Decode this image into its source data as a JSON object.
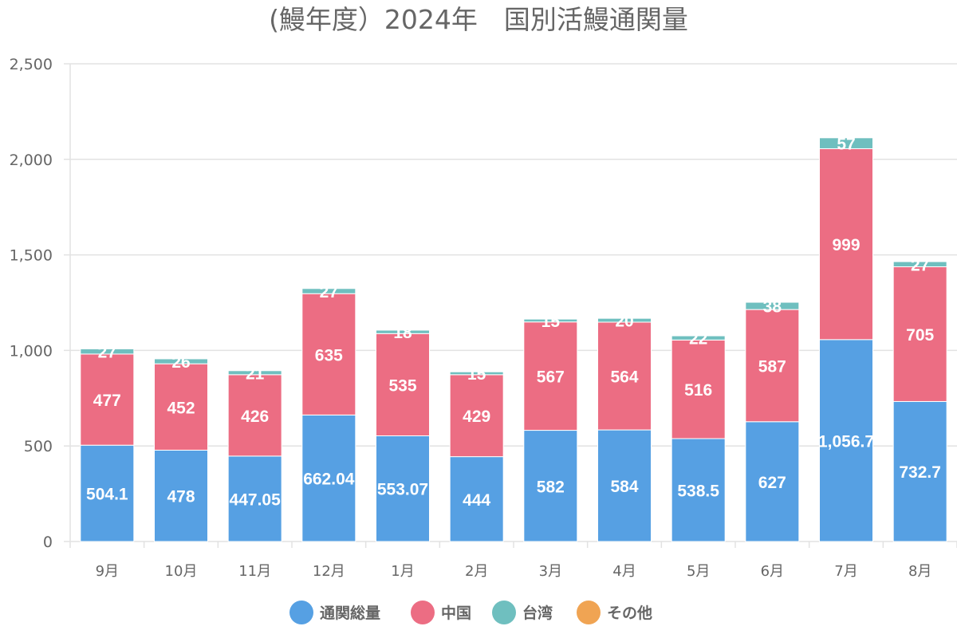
{
  "chart_data": {
    "type": "bar",
    "stacked": true,
    "title": "(鰻年度）2024年　国別活鰻通関量",
    "xlabel": "",
    "ylabel": "",
    "ylim": [
      0,
      2500
    ],
    "yticks": [
      "0",
      "500",
      "1,000",
      "1,500",
      "2,000",
      "2,500"
    ],
    "ytick_values": [
      0,
      500,
      1000,
      1500,
      2000,
      2500
    ],
    "grid": true,
    "legend_position": "bottom",
    "categories": [
      "9月",
      "10月",
      "11月",
      "12月",
      "1月",
      "2月",
      "3月",
      "4月",
      "5月",
      "6月",
      "7月",
      "8月"
    ],
    "series": [
      {
        "name": "通関総量",
        "color": "#56a0e3",
        "values": [
          504.1,
          478,
          447.05,
          662.04,
          553.07,
          444,
          582,
          584,
          538.5,
          627,
          1056.7,
          732.7
        ],
        "labels": [
          "504.1",
          "478",
          "447.05",
          "662.04",
          "553.07",
          "444",
          "582",
          "584",
          "538.5",
          "627",
          "1,056.7",
          "732.7"
        ]
      },
      {
        "name": "中国",
        "color": "#ec6d83",
        "values": [
          477,
          452,
          426,
          635,
          535,
          429,
          567,
          564,
          516,
          587,
          999,
          705
        ],
        "labels": [
          "477",
          "452",
          "426",
          "635",
          "535",
          "429",
          "567",
          "564",
          "516",
          "587",
          "999",
          "705"
        ]
      },
      {
        "name": "台湾",
        "color": "#6fbfbf",
        "values": [
          27,
          26,
          21,
          27,
          18,
          15,
          15,
          20,
          22,
          38,
          57,
          27
        ],
        "labels": [
          "27",
          "26",
          "21",
          "27",
          "18",
          "15",
          "15",
          "20",
          "22",
          "38",
          "57",
          "27"
        ]
      },
      {
        "name": "その他",
        "color": "#f0a453",
        "values": [
          0,
          0,
          0,
          0,
          0,
          0,
          0,
          0,
          0,
          0,
          0,
          0
        ],
        "labels": []
      }
    ]
  }
}
